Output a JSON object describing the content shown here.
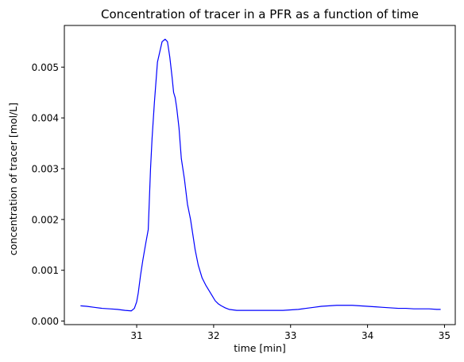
{
  "chart_data": {
    "type": "line",
    "title": "Concentration of tracer in a PFR as a function of time",
    "xlabel": "time [min]",
    "ylabel": "concentration of tracer [mol/L]",
    "xlim": [
      30.06,
      35.14
    ],
    "ylim": [
      -7e-05,
      0.00582
    ],
    "xticks": [
      31,
      32,
      33,
      34,
      35
    ],
    "xtick_labels": [
      "31",
      "32",
      "33",
      "34",
      "35"
    ],
    "yticks": [
      0.0,
      0.001,
      0.002,
      0.003,
      0.004,
      0.005
    ],
    "ytick_labels": [
      "0.000",
      "0.001",
      "0.002",
      "0.003",
      "0.004",
      "0.005"
    ],
    "grid": false,
    "series": [
      {
        "color": "#0000ff",
        "x": [
          30.27,
          30.35,
          30.45,
          30.55,
          30.65,
          30.75,
          30.85,
          30.93,
          30.97,
          31.0,
          31.02,
          31.05,
          31.08,
          31.12,
          31.15,
          31.18,
          31.2,
          31.23,
          31.27,
          31.3,
          31.33,
          31.37,
          31.4,
          31.43,
          31.46,
          31.48,
          31.5,
          31.52,
          31.55,
          31.58,
          31.62,
          31.66,
          31.7,
          31.73,
          31.76,
          31.8,
          31.85,
          31.9,
          31.94,
          31.98,
          32.02,
          32.06,
          32.1,
          32.15,
          32.2,
          32.25,
          32.3,
          32.35,
          32.4,
          32.45,
          32.5,
          32.6,
          32.7,
          32.8,
          32.9,
          33.0,
          33.1,
          33.2,
          33.3,
          33.4,
          33.5,
          33.6,
          33.7,
          33.8,
          33.9,
          34.0,
          34.1,
          34.2,
          34.3,
          34.4,
          34.5,
          34.6,
          34.7,
          34.8,
          34.9,
          34.95
        ],
        "y": [
          0.0003,
          0.00029,
          0.00027,
          0.00025,
          0.00024,
          0.00023,
          0.00021,
          0.0002,
          0.00025,
          0.00038,
          0.00055,
          0.0009,
          0.0012,
          0.00155,
          0.0018,
          0.003,
          0.0036,
          0.0043,
          0.0051,
          0.0053,
          0.0055,
          0.00555,
          0.0055,
          0.0052,
          0.0048,
          0.0045,
          0.0044,
          0.0042,
          0.0038,
          0.0032,
          0.0028,
          0.0023,
          0.002,
          0.0017,
          0.0014,
          0.0011,
          0.00085,
          0.0007,
          0.0006,
          0.0005,
          0.0004,
          0.00034,
          0.0003,
          0.00026,
          0.00023,
          0.00022,
          0.00021,
          0.00021,
          0.00021,
          0.00021,
          0.00021,
          0.00021,
          0.00021,
          0.00021,
          0.00021,
          0.00022,
          0.00023,
          0.00025,
          0.00027,
          0.00029,
          0.0003,
          0.00031,
          0.00031,
          0.00031,
          0.0003,
          0.00029,
          0.00028,
          0.00027,
          0.00026,
          0.00025,
          0.00025,
          0.00024,
          0.00024,
          0.00024,
          0.00023,
          0.00023
        ]
      }
    ]
  }
}
